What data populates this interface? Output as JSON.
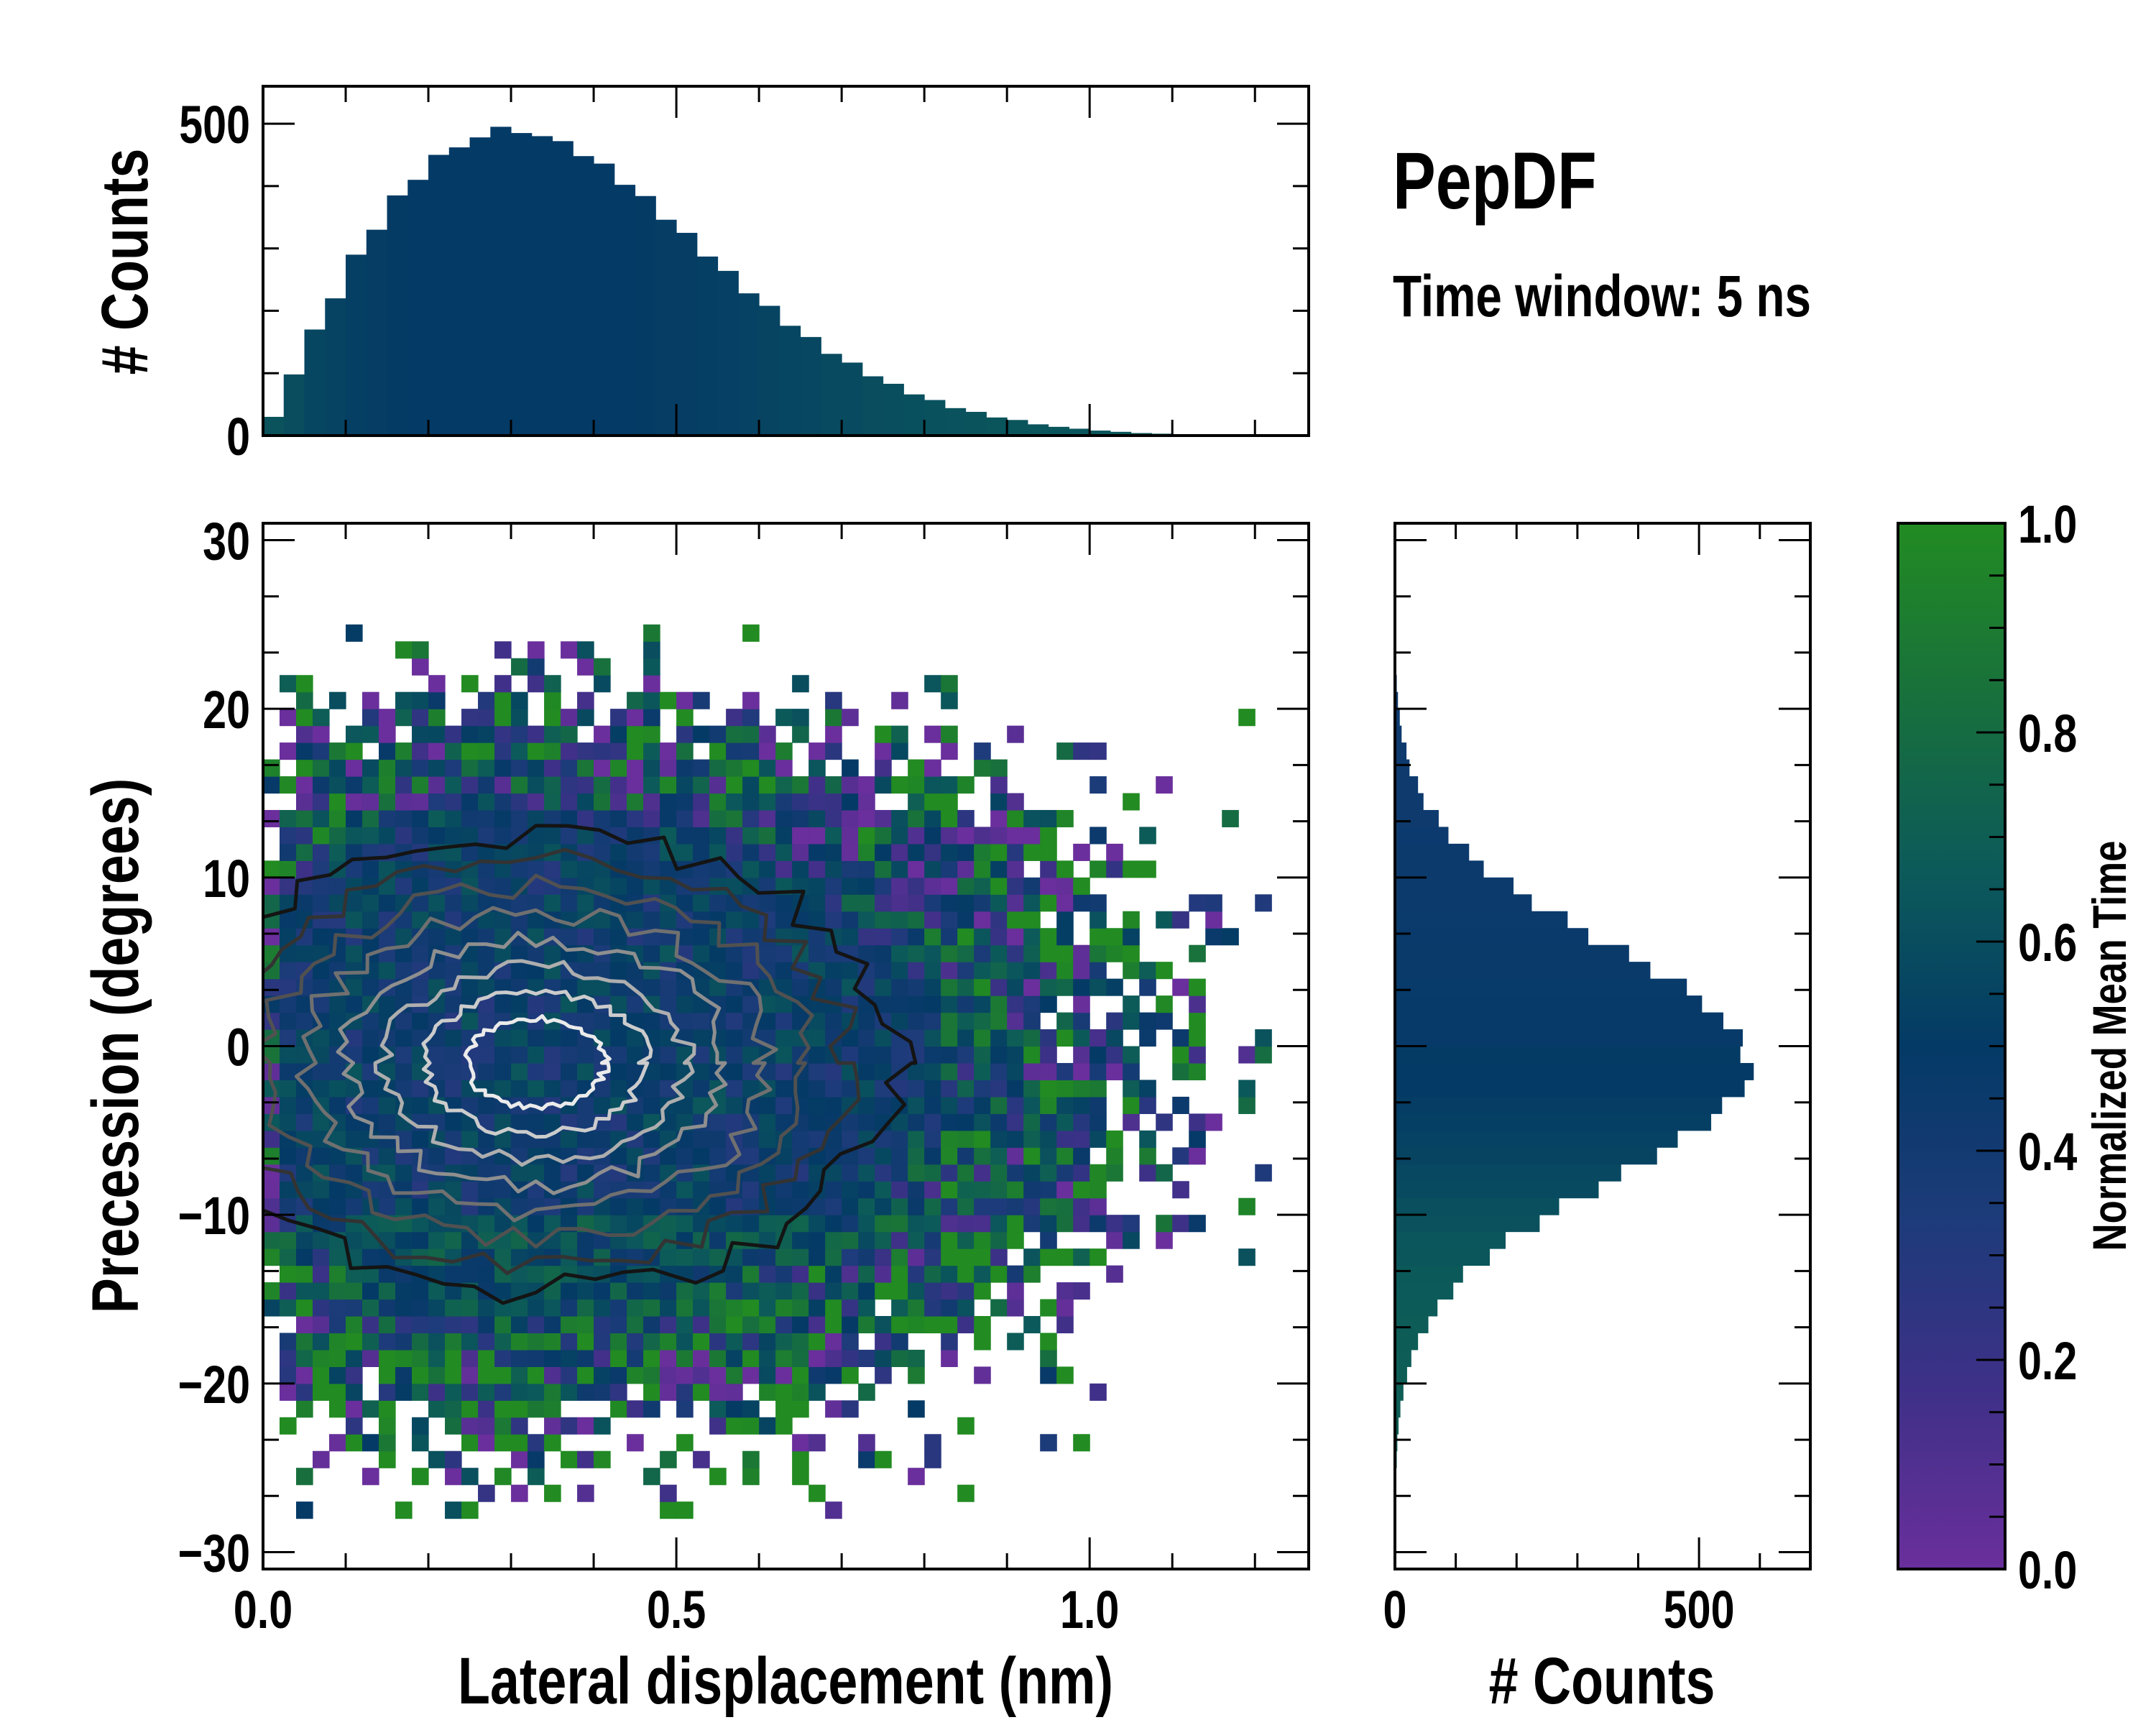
{
  "title": "PepDF",
  "subtitle": "Time window: 5 ns",
  "chart_data": [
    {
      "name": "lateral-displacement-histogram",
      "type": "bar",
      "ylabel": "# Counts",
      "xlim": [
        0,
        1.265
      ],
      "ylim": [
        0,
        560
      ],
      "yticks": [
        {
          "value": 0,
          "label": "0"
        },
        {
          "value": 500,
          "label": "500"
        }
      ],
      "bin_start": 0,
      "bin_width": 0.025,
      "values": [
        30,
        98,
        170,
        220,
        290,
        330,
        385,
        410,
        450,
        462,
        478,
        495,
        485,
        480,
        472,
        448,
        436,
        402,
        384,
        346,
        325,
        287,
        264,
        228,
        208,
        176,
        158,
        131,
        117,
        95,
        83,
        66,
        57,
        44,
        38,
        29,
        25,
        18,
        14,
        11,
        8,
        6,
        4,
        3,
        2,
        2,
        1,
        1,
        1,
        0
      ],
      "color": "#073b6e"
    },
    {
      "name": "precession-histogram",
      "type": "bar",
      "orientation": "horizontal",
      "xlabel": "# Counts",
      "xlim": [
        0,
        683
      ],
      "ylim": [
        -31,
        31
      ],
      "xticks": [
        {
          "value": 0,
          "label": "0"
        },
        {
          "value": 500,
          "label": "500"
        }
      ],
      "bin_start": -31,
      "bin_width": 1,
      "values": [
        0,
        0,
        0,
        1,
        1,
        2,
        3,
        4,
        6,
        9,
        14,
        20,
        27,
        38,
        55,
        70,
        96,
        112,
        156,
        182,
        238,
        270,
        335,
        372,
        431,
        465,
        520,
        538,
        575,
        590,
        568,
        572,
        540,
        505,
        480,
        420,
        385,
        318,
        284,
        225,
        195,
        146,
        122,
        88,
        72,
        47,
        38,
        24,
        19,
        11,
        8,
        5,
        3,
        2,
        1,
        1,
        0,
        0,
        0,
        0,
        0,
        0
      ],
      "color": "#073b6e"
    },
    {
      "name": "joint-distribution",
      "type": "heatmap",
      "xlabel": "Lateral displacement (nm)",
      "ylabel": "Precession (degrees)",
      "xlim": [
        0,
        1.265
      ],
      "ylim": [
        -31,
        31
      ],
      "xticks": [
        {
          "value": 0,
          "label": "0.0"
        },
        {
          "value": 0.5,
          "label": "0.5"
        },
        {
          "value": 1.0,
          "label": "1.0"
        }
      ],
      "yticks": [
        {
          "value": -30,
          "label": "−30"
        },
        {
          "value": -20,
          "label": "−20"
        },
        {
          "value": -10,
          "label": "−10"
        },
        {
          "value": 0,
          "label": "0"
        },
        {
          "value": 10,
          "label": "10"
        },
        {
          "value": 20,
          "label": "20"
        },
        {
          "value": 30,
          "label": "30"
        }
      ],
      "cell_size": [
        0.02,
        1
      ],
      "contour_center": [
        0.33,
        -1
      ],
      "contour_levels": 8
    },
    {
      "name": "colorbar",
      "type": "colorbar",
      "label": "Normalized Mean Time",
      "range": [
        0,
        1
      ],
      "ticks": [
        {
          "value": 0,
          "label": "0.0"
        },
        {
          "value": 0.2,
          "label": "0.2"
        },
        {
          "value": 0.4,
          "label": "0.4"
        },
        {
          "value": 0.6,
          "label": "0.6"
        },
        {
          "value": 0.8,
          "label": "0.8"
        },
        {
          "value": 1.0,
          "label": "1.0"
        }
      ],
      "colormap": [
        "#6a2f9c",
        "#3f3088",
        "#1d3b7a",
        "#043a66",
        "#0c5a5a",
        "#18703c",
        "#228b22"
      ]
    }
  ]
}
